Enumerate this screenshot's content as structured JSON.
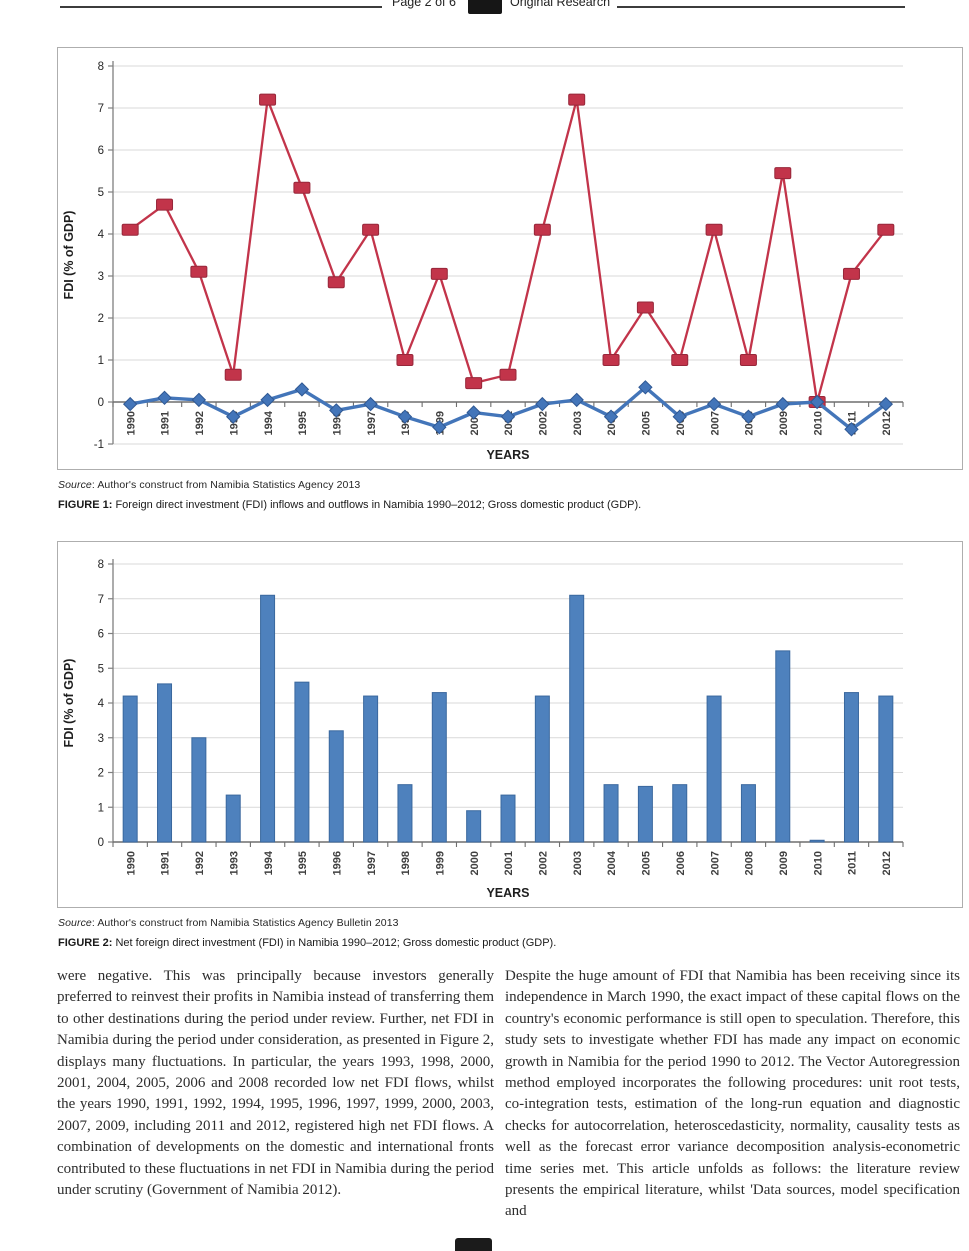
{
  "header": {
    "page_label": "Page 2 of 6",
    "section_label": "Original Research"
  },
  "figure1": {
    "source_word": "Source",
    "source_text": ": Author's construct from Namibia Statistics Agency 2013",
    "caption_label": "FIGURE 1:",
    "caption_text": " Foreign direct investment (FDI) inflows and outflows in Namibia 1990–2012; Gross domestic product (GDP)."
  },
  "figure2": {
    "source_word": "Source",
    "source_text": ": Author's construct from Namibia Statistics Agency Bulletin 2013",
    "caption_label": "FIGURE 2:",
    "caption_text": " Net foreign direct investment (FDI) in Namibia 1990–2012; Gross domestic product (GDP)."
  },
  "body": {
    "left_paragraph": "were negative. This was principally because investors generally preferred to reinvest their profits in Namibia instead of transferring them to other destinations during the period under review. Further, net FDI in Namibia during the period under consideration, as presented in Figure 2, displays many fluctuations. In particular, the years 1993, 1998, 2000, 2001, 2004, 2005, 2006 and 2008 recorded low net FDI flows, whilst the years 1990, 1991, 1992, 1994, 1995, 1996, 1997, 1999, 2000, 2003, 2007, 2009, including 2011 and 2012, registered high net FDI flows. A combination of developments on the domestic and international fronts contributed to these fluctuations in net FDI in Namibia during the period under scrutiny (Government of Namibia 2012).",
    "right_paragraph": "Despite the huge amount of FDI that Namibia has been receiving since its independence in March 1990, the exact impact of these capital flows on the country's economic performance is still open to speculation. Therefore, this study sets to investigate whether FDI has made any impact on economic growth in Namibia for the period 1990 to 2012. The Vector Autoregression method employed incorporates the following procedures: unit root tests, co-integration tests, estimation of the long-run equation and diagnostic checks for autocorrelation, heteroscedasticity, normality, causality tests as well as the forecast error variance decomposition analysis-econometric time series met. This article unfolds as follows: the literature review presents the empirical literature, whilst 'Data sources, model specification and"
  },
  "chart_data": [
    {
      "type": "line",
      "title": "",
      "xlabel": "YEARS",
      "ylabel": "FDI (% of GDP)",
      "ylim": [
        -1,
        8
      ],
      "grid": true,
      "legend": "none",
      "categories": [
        "1990",
        "1991",
        "1992",
        "1993",
        "1994",
        "1995",
        "1996",
        "1997",
        "1998",
        "1999",
        "2000",
        "2001",
        "2002",
        "2003",
        "2004",
        "2005",
        "2006",
        "2007",
        "2008",
        "2009",
        "2010",
        "2011",
        "2012"
      ],
      "series": [
        {
          "name": "FDI inflows",
          "marker": "square",
          "color": "#c2344a",
          "edge": "#97273a",
          "values": [
            4.1,
            4.7,
            3.1,
            0.65,
            7.2,
            5.1,
            2.85,
            4.1,
            1.0,
            3.05,
            0.45,
            0.65,
            4.1,
            7.2,
            1.0,
            2.25,
            1.0,
            4.1,
            1.0,
            5.45,
            0.0,
            3.05,
            4.1
          ]
        },
        {
          "name": "FDI outflows",
          "marker": "diamond",
          "color": "#4375b9",
          "edge": "#2f5893",
          "values": [
            -0.05,
            0.1,
            0.05,
            -0.35,
            0.05,
            0.3,
            -0.2,
            -0.05,
            -0.35,
            -0.6,
            -0.25,
            -0.35,
            -0.05,
            0.05,
            -0.35,
            0.35,
            -0.35,
            -0.05,
            -0.35,
            -0.05,
            0.0,
            -0.65,
            -0.05
          ]
        }
      ]
    },
    {
      "type": "bar",
      "title": "",
      "xlabel": "YEARS",
      "ylabel": "FDI (% of GDP)",
      "ylim": [
        0,
        8
      ],
      "grid": true,
      "legend": "none",
      "bar_color": "#4e81bd",
      "bar_edge": "#3a689e",
      "categories": [
        "1990",
        "1991",
        "1992",
        "1993",
        "1994",
        "1995",
        "1996",
        "1997",
        "1998",
        "1999",
        "2000",
        "2001",
        "2002",
        "2003",
        "2004",
        "2005",
        "2006",
        "2007",
        "2008",
        "2009",
        "2010",
        "2011",
        "2012"
      ],
      "values": [
        4.2,
        4.55,
        3.0,
        1.35,
        7.1,
        4.6,
        3.2,
        4.2,
        1.65,
        4.3,
        0.9,
        1.35,
        4.2,
        7.1,
        1.65,
        1.6,
        1.65,
        4.2,
        1.65,
        5.5,
        0.05,
        4.3,
        4.2
      ]
    }
  ],
  "colors": {
    "grid": "#d9d9d9",
    "axis": "#808080",
    "zero_axis": "#6e6e6e",
    "tick_text": "#262626",
    "year_text": "#3f3f3f"
  }
}
